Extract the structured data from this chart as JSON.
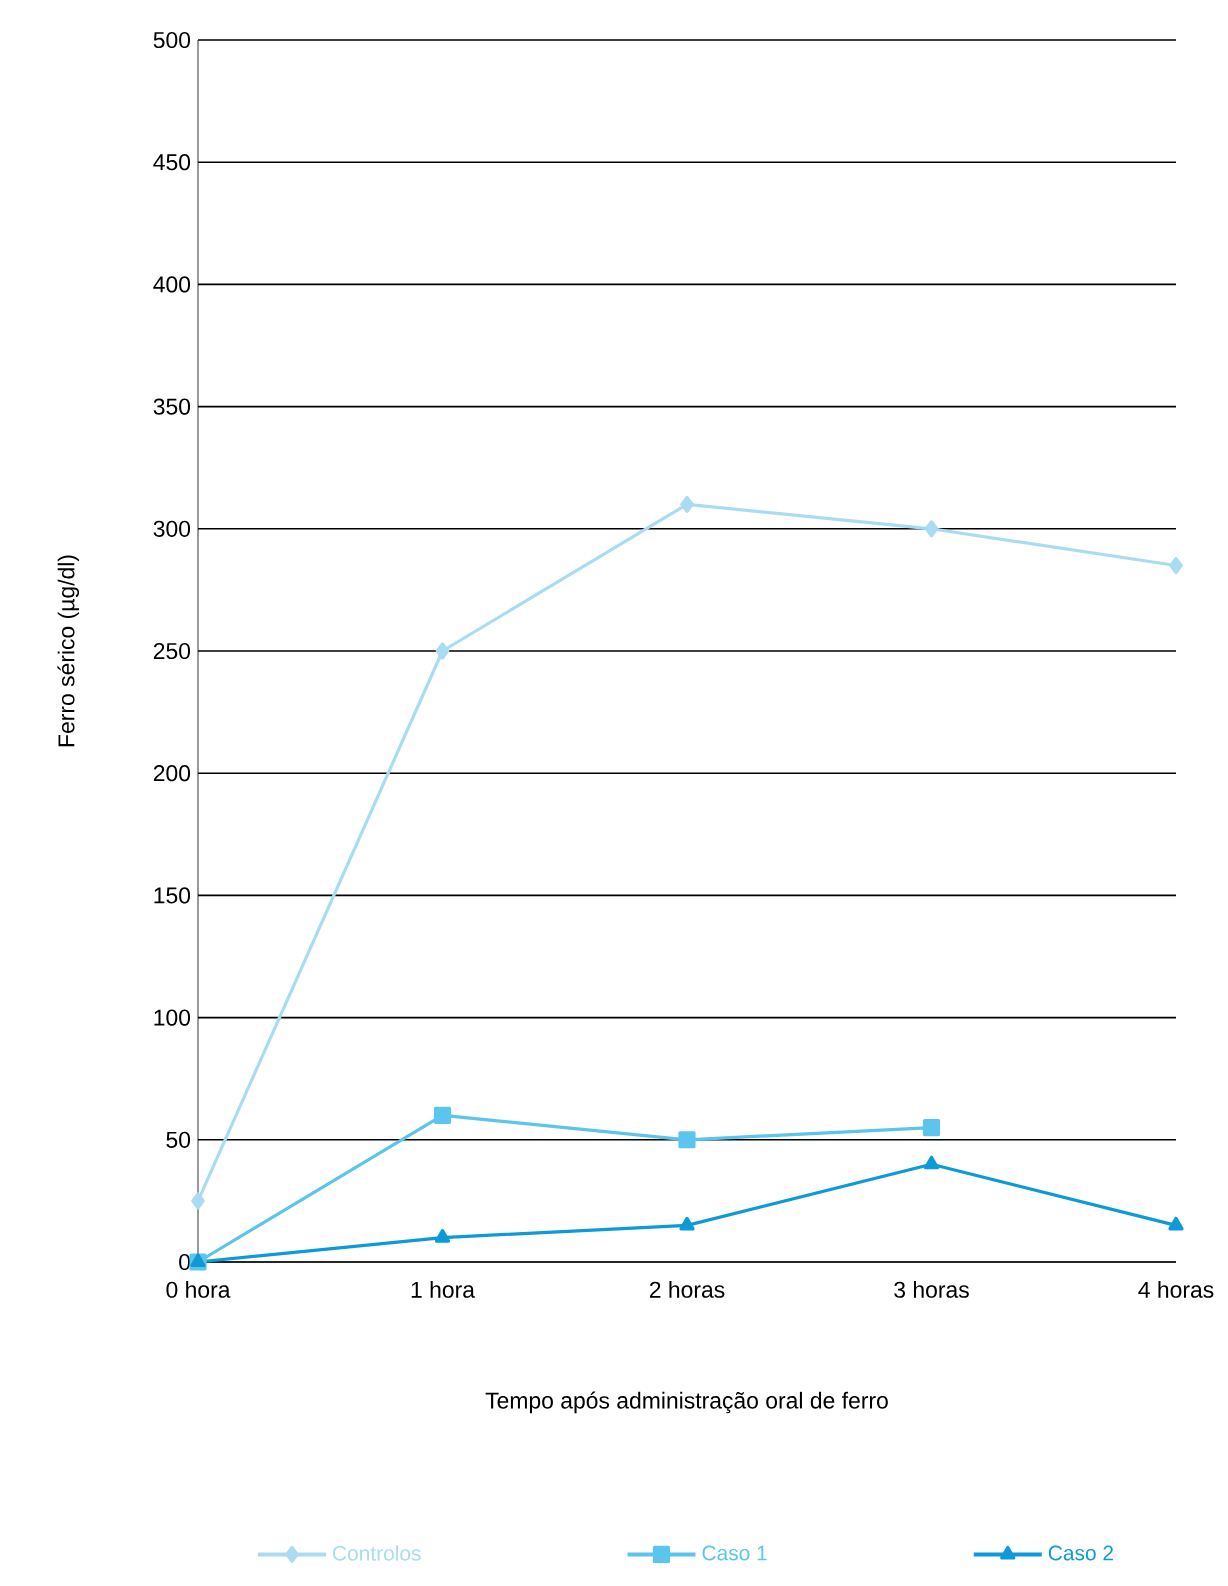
{
  "chart_data": {
    "type": "line",
    "xlabel": "Tempo após administração oral de ferro",
    "ylabel": "Ferro sérico  (µg/dl)",
    "categories": [
      "0 hora",
      "1 hora",
      "2 horas",
      "3 horas",
      "4 horas"
    ],
    "series": [
      {
        "name": "Controlos",
        "color": "#a9dcf3",
        "marker": "diamond",
        "values": [
          25,
          250,
          310,
          300,
          285
        ]
      },
      {
        "name": "Caso 1",
        "color": "#5bc5ee",
        "marker": "square",
        "values": [
          0,
          60,
          50,
          55,
          null
        ]
      },
      {
        "name": "Caso 2",
        "color": "#0d9ad8",
        "marker": "triangle",
        "values": [
          0,
          10,
          15,
          40,
          15
        ]
      }
    ],
    "ylim": [
      0,
      500
    ],
    "yticks": [
      0,
      50,
      100,
      150,
      200,
      250,
      300,
      350,
      400,
      450,
      500
    ],
    "grid": "y",
    "legend": "bottom",
    "line_style": "solid"
  }
}
